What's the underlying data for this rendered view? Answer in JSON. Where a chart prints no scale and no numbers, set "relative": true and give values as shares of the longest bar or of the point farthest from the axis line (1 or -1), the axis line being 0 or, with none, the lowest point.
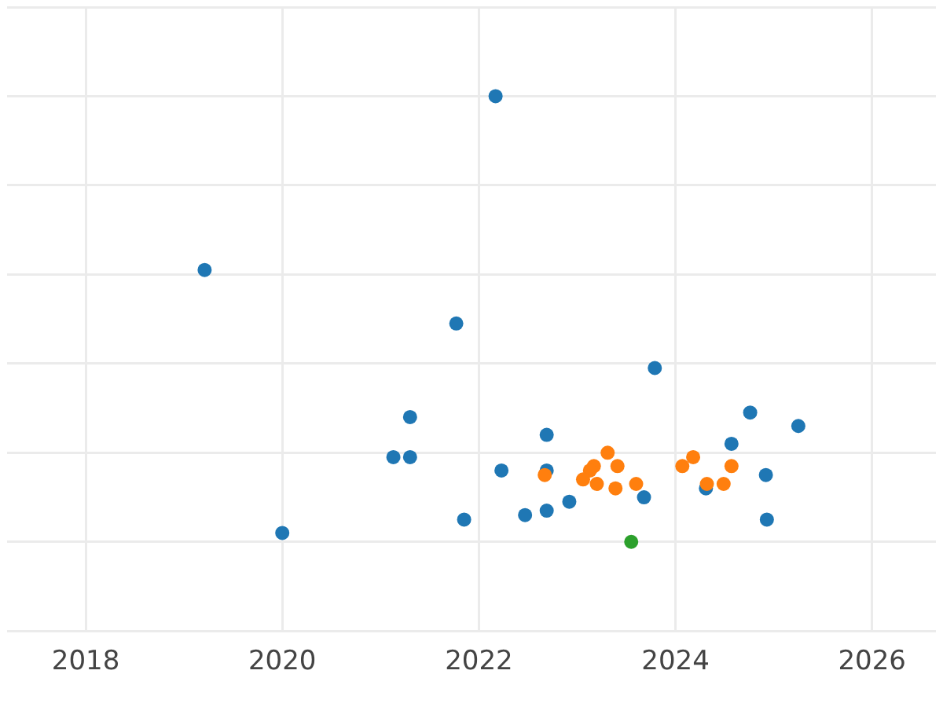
{
  "chart_data": {
    "type": "scatter",
    "relative": true,
    "grid": true,
    "marker": "circle",
    "xlim": [
      2017.2,
      2026.65
    ],
    "xticks": [
      2018,
      2020,
      2022,
      2024,
      2026
    ],
    "series": [
      {
        "color": "#1f77b4",
        "x": [
          2019.21,
          2022.17,
          2021.77,
          2023.79,
          2020.0,
          2021.3,
          2021.13,
          2021.3,
          2022.69,
          2022.23,
          2022.69,
          2021.85,
          2022.47,
          2022.69,
          2022.92,
          2023.68,
          2024.76,
          2025.25,
          2024.57,
          2024.31,
          2024.92,
          2024.93
        ],
        "values": [
          0.61,
          1.0,
          0.49,
          0.39,
          0.02,
          0.28,
          0.19,
          0.19,
          0.24,
          0.16,
          0.16,
          0.05,
          0.06,
          0.07,
          0.09,
          0.1,
          0.29,
          0.26,
          0.22,
          0.12,
          0.15,
          0.05
        ]
      },
      {
        "color": "#ff7f0e",
        "x": [
          2022.67,
          2023.31,
          2023.17,
          2023.13,
          2023.41,
          2023.06,
          2023.2,
          2023.39,
          2023.6,
          2024.07,
          2024.18,
          2024.32,
          2024.49,
          2024.57
        ],
        "values": [
          0.15,
          0.2,
          0.17,
          0.16,
          0.17,
          0.14,
          0.13,
          0.12,
          0.13,
          0.17,
          0.19,
          0.13,
          0.13,
          0.17
        ]
      },
      {
        "color": "#2ca02c",
        "x": [
          2023.55
        ],
        "values": [
          0.0
        ]
      }
    ]
  }
}
